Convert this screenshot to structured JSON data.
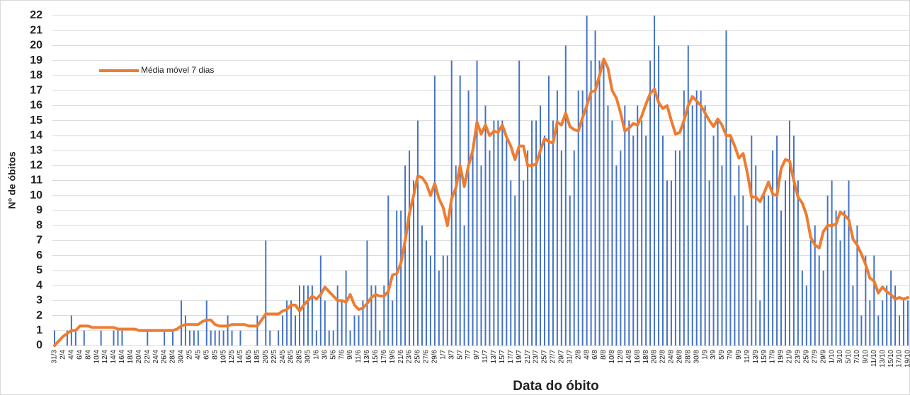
{
  "chart_data": {
    "type": "combo",
    "y_label": "Nº de óbitos",
    "x_label": "Data do óbito",
    "ylim": [
      0,
      22
    ],
    "yticks": [
      0,
      1,
      2,
      3,
      4,
      5,
      6,
      7,
      8,
      9,
      10,
      11,
      12,
      13,
      14,
      15,
      16,
      17,
      18,
      19,
      20,
      21,
      22
    ],
    "grid": true,
    "legend": "upper-left",
    "categories": [
      "31/3",
      null,
      "2/4",
      null,
      "4/4",
      null,
      "6/4",
      null,
      "8/4",
      null,
      "10/4",
      null,
      "12/4",
      null,
      "14/4",
      null,
      "16/4",
      null,
      "18/4",
      null,
      "20/4",
      null,
      "22/4",
      null,
      "24/4",
      null,
      "26/4",
      null,
      "28/4",
      null,
      "30/4",
      null,
      "2/5",
      null,
      "4/5",
      null,
      "6/5",
      null,
      "8/5",
      null,
      "10/5",
      null,
      "12/5",
      null,
      "14/5",
      null,
      "16/5",
      null,
      "18/5",
      null,
      "20/5",
      null,
      "22/5",
      null,
      "24/5",
      null,
      "26/5",
      null,
      "28/5",
      null,
      "30/5",
      null,
      "1/6",
      null,
      "3/6",
      null,
      "5/6",
      null,
      "7/6",
      null,
      "9/6",
      null,
      "11/6",
      null,
      "13/6",
      null,
      "15/6",
      null,
      "17/6",
      null,
      "19/6",
      null,
      "21/6",
      null,
      "23/6",
      null,
      "25/6",
      null,
      "27/6",
      null,
      "29/6",
      null,
      "1/7",
      null,
      "3/7",
      null,
      "5/7",
      null,
      "7/7",
      null,
      "9/7",
      null,
      "11/7",
      null,
      "13/7",
      null,
      "15/7",
      null,
      "17/7",
      null,
      "19/7",
      null,
      "21/7",
      null,
      "23/7",
      null,
      "25/7",
      null,
      "27/7",
      null,
      "29/7",
      null,
      "31/7",
      null,
      "2/8",
      null,
      "4/8",
      null,
      "6/8",
      null,
      "8/8",
      null,
      "10/8",
      null,
      "12/8",
      null,
      "14/8",
      null,
      "16/8",
      null,
      "18/8",
      null,
      "20/8",
      null,
      "22/8",
      null,
      "24/8",
      null,
      "26/8",
      null,
      "28/8",
      null,
      "30/8",
      null,
      "1/9",
      null,
      "3/9",
      null,
      "5/9",
      null,
      "7/9",
      null,
      "9/9",
      null,
      "11/9",
      null,
      "13/9",
      null,
      "15/9",
      null,
      "17/9",
      null,
      "19/9",
      null,
      "21/9",
      null,
      "23/9",
      null,
      "25/9",
      null,
      "27/9",
      null,
      "29/9",
      null,
      "1/10",
      null,
      "3/10",
      null,
      "5/10",
      null,
      "7/10",
      null,
      "9/10",
      null,
      "11/10",
      null,
      "13/10",
      null,
      "15/10",
      null,
      "17/10",
      null,
      "19/10"
    ],
    "series": [
      {
        "type": "bar",
        "color": "#4472c4",
        "values": [
          1,
          0,
          0,
          1,
          2,
          1,
          0,
          1,
          0,
          0,
          0,
          1,
          0,
          0,
          1,
          1,
          1,
          0,
          0,
          0,
          0,
          0,
          1,
          0,
          0,
          0,
          1,
          0,
          1,
          0,
          3,
          2,
          1,
          1,
          1,
          0,
          3,
          1,
          1,
          1,
          1,
          2,
          1,
          0,
          1,
          0,
          0,
          0,
          2,
          0,
          7,
          1,
          0,
          1,
          2,
          3,
          3,
          2,
          4,
          4,
          4,
          4,
          1,
          6,
          3,
          1,
          1,
          4,
          3,
          5,
          1,
          2,
          2,
          3,
          7,
          4,
          4,
          1,
          4,
          10,
          3,
          9,
          9,
          12,
          13,
          11,
          15,
          8,
          7,
          6,
          18,
          5,
          6,
          6,
          19,
          12,
          18,
          8,
          17,
          13,
          19,
          12,
          16,
          13,
          15,
          15,
          15,
          14,
          11,
          10,
          19,
          11,
          13,
          15,
          15,
          16,
          14,
          18,
          15,
          17,
          13,
          20,
          10,
          13,
          17,
          17,
          22,
          19,
          21,
          19,
          19,
          16,
          15,
          12,
          13,
          16,
          15,
          14,
          16,
          15,
          14,
          19,
          22,
          20,
          14,
          11,
          11,
          13,
          13,
          17,
          20,
          16,
          17,
          17,
          16,
          11,
          14,
          15,
          12,
          21,
          14,
          10,
          12,
          10,
          8,
          14,
          12,
          3,
          10,
          10,
          13,
          14,
          9,
          11,
          15,
          14,
          11,
          5,
          4,
          7,
          8,
          6,
          5,
          10,
          11,
          9,
          7,
          9,
          11,
          4,
          8,
          2,
          6,
          3,
          6,
          2,
          3,
          4,
          5,
          4,
          2,
          3,
          3
        ]
      },
      {
        "type": "line",
        "name": "Média móvel 7 dias",
        "color": "#ed7d31",
        "values": [
          0,
          0.3,
          0.6,
          0.8,
          1.0,
          1.0,
          1.3,
          1.3,
          1.3,
          1.2,
          1.2,
          1.2,
          1.2,
          1.2,
          1.2,
          1.1,
          1.1,
          1.1,
          1.1,
          1.1,
          1.0,
          1.0,
          1.0,
          1.0,
          1.0,
          1.0,
          1.0,
          1.0,
          1.0,
          1.1,
          1.3,
          1.4,
          1.4,
          1.4,
          1.4,
          1.6,
          1.7,
          1.7,
          1.4,
          1.3,
          1.3,
          1.3,
          1.4,
          1.4,
          1.4,
          1.4,
          1.3,
          1.3,
          1.3,
          1.7,
          2.1,
          2.1,
          2.1,
          2.1,
          2.3,
          2.4,
          2.7,
          2.7,
          2.3,
          2.7,
          3.0,
          3.3,
          3.1,
          3.4,
          3.9,
          3.6,
          3.3,
          3.0,
          3.0,
          2.9,
          3.4,
          2.7,
          2.4,
          2.5,
          2.8,
          3.2,
          3.4,
          3.3,
          3.3,
          3.6,
          4.7,
          4.8,
          5.5,
          7.0,
          8.8,
          10.0,
          11.3,
          11.2,
          10.8,
          10.0,
          10.8,
          9.8,
          9.2,
          8.0,
          9.8,
          10.5,
          12.0,
          10.6,
          12.0,
          13.0,
          14.9,
          14.1,
          14.7,
          14.0,
          14.3,
          14.2,
          14.7,
          13.9,
          13.3,
          12.4,
          13.3,
          13.3,
          12.0,
          12.0,
          12.1,
          13.0,
          13.8,
          13.6,
          13.5,
          14.9,
          14.7,
          15.5,
          14.6,
          14.4,
          14.3,
          15.2,
          16.0,
          16.9,
          17.0,
          18.0,
          19.1,
          18.5,
          17.0,
          16.5,
          15.5,
          14.3,
          14.5,
          14.8,
          14.7,
          15.3,
          16.1,
          16.8,
          17.1,
          16.2,
          15.8,
          16.0,
          15.0,
          14.1,
          14.2,
          15.0,
          16.0,
          16.6,
          16.3,
          16.0,
          15.5,
          15.0,
          14.6,
          15.1,
          14.7,
          14.0,
          14.0,
          13.3,
          12.5,
          12.8,
          11.5,
          9.9,
          9.9,
          9.6,
          10.2,
          10.9,
          10.1,
          10.0,
          11.8,
          12.4,
          12.3,
          11.0,
          9.9,
          9.5,
          8.7,
          7.2,
          6.7,
          6.5,
          7.6,
          8.0,
          8.0,
          8.1,
          8.9,
          8.7,
          8.4,
          7.1,
          6.7,
          6.1,
          5.4,
          4.5,
          4.3,
          3.5,
          3.9,
          3.6,
          3.4,
          3.1,
          3.2,
          3.1,
          3.2
        ]
      }
    ]
  }
}
